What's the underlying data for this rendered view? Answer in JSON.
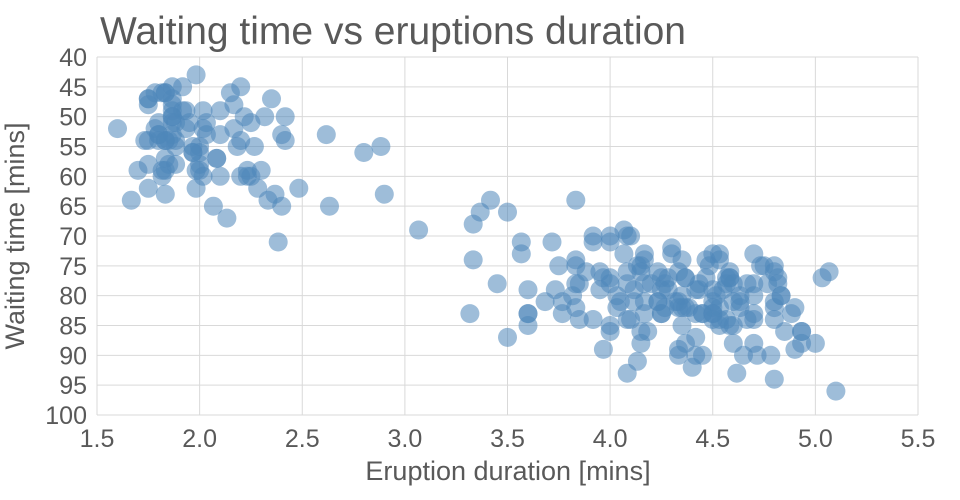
{
  "title": "Waiting time vs eruptions duration",
  "chart_data": {
    "type": "scatter",
    "title": "Waiting time vs eruptions duration",
    "xlabel": "Eruption duration [mins]",
    "ylabel": "Waiting time [mins]",
    "xlim": [
      1.5,
      5.5
    ],
    "ylim": [
      40,
      100
    ],
    "y_axis_inverted": true,
    "grid": true,
    "legend": "none",
    "x_ticks": [
      1.5,
      2.0,
      2.5,
      3.0,
      3.5,
      4.0,
      4.5,
      5.0,
      5.5
    ],
    "x_tick_labels": [
      "1.5",
      "2.0",
      "2.5",
      "3.0",
      "3.5",
      "4.0",
      "4.5",
      "5.0",
      "5.5"
    ],
    "y_ticks": [
      40,
      45,
      50,
      55,
      60,
      65,
      70,
      75,
      80,
      85,
      90,
      95,
      100
    ],
    "y_tick_labels": [
      "40",
      "45",
      "50",
      "55",
      "60",
      "65",
      "70",
      "75",
      "80",
      "85",
      "90",
      "95",
      "100"
    ],
    "colors": {
      "points": "#4f86ba",
      "grid": "#d9d9d9",
      "text": "#595959"
    },
    "point_opacity": 0.55,
    "point_radius": 9.5,
    "points": [
      [
        3.6,
        79
      ],
      [
        1.8,
        54
      ],
      [
        3.333,
        74
      ],
      [
        2.283,
        62
      ],
      [
        4.533,
        85
      ],
      [
        2.883,
        55
      ],
      [
        4.7,
        88
      ],
      [
        3.6,
        85
      ],
      [
        1.95,
        51
      ],
      [
        4.35,
        85
      ],
      [
        1.833,
        54
      ],
      [
        3.917,
        84
      ],
      [
        4.2,
        78
      ],
      [
        1.75,
        47
      ],
      [
        4.7,
        83
      ],
      [
        2.167,
        52
      ],
      [
        1.75,
        62
      ],
      [
        4.8,
        84
      ],
      [
        1.6,
        52
      ],
      [
        4.25,
        79
      ],
      [
        1.8,
        51
      ],
      [
        1.75,
        47
      ],
      [
        3.45,
        78
      ],
      [
        3.067,
        69
      ],
      [
        4.533,
        74
      ],
      [
        3.6,
        83
      ],
      [
        1.967,
        55
      ],
      [
        4.083,
        76
      ],
      [
        3.85,
        78
      ],
      [
        4.433,
        79
      ],
      [
        4.3,
        73
      ],
      [
        4.467,
        77
      ],
      [
        3.367,
        66
      ],
      [
        4.033,
        80
      ],
      [
        3.833,
        74
      ],
      [
        2.017,
        52
      ],
      [
        1.867,
        48
      ],
      [
        4.833,
        80
      ],
      [
        1.833,
        59
      ],
      [
        4.783,
        90
      ],
      [
        4.35,
        80
      ],
      [
        1.883,
        58
      ],
      [
        4.567,
        84
      ],
      [
        1.75,
        58
      ],
      [
        4.533,
        73
      ],
      [
        3.317,
        83
      ],
      [
        3.833,
        64
      ],
      [
        2.1,
        53
      ],
      [
        4.633,
        82
      ],
      [
        2.0,
        59
      ],
      [
        4.8,
        75
      ],
      [
        4.716,
        90
      ],
      [
        1.833,
        54
      ],
      [
        4.833,
        80
      ],
      [
        1.733,
        54
      ],
      [
        4.883,
        83
      ],
      [
        3.717,
        71
      ],
      [
        1.667,
        64
      ],
      [
        4.567,
        77
      ],
      [
        4.317,
        81
      ],
      [
        2.233,
        59
      ],
      [
        4.5,
        84
      ],
      [
        1.75,
        48
      ],
      [
        4.8,
        82
      ],
      [
        1.817,
        60
      ],
      [
        4.4,
        92
      ],
      [
        4.167,
        78
      ],
      [
        4.7,
        78
      ],
      [
        2.067,
        65
      ],
      [
        4.7,
        73
      ],
      [
        4.033,
        82
      ],
      [
        1.967,
        56
      ],
      [
        4.5,
        79
      ],
      [
        4.0,
        71
      ],
      [
        1.983,
        62
      ],
      [
        5.067,
        76
      ],
      [
        2.017,
        60
      ],
      [
        4.567,
        78
      ],
      [
        3.883,
        76
      ],
      [
        3.6,
        83
      ],
      [
        4.133,
        75
      ],
      [
        4.333,
        82
      ],
      [
        4.1,
        70
      ],
      [
        2.633,
        65
      ],
      [
        4.067,
        73
      ],
      [
        4.933,
        88
      ],
      [
        3.95,
        76
      ],
      [
        4.517,
        80
      ],
      [
        2.167,
        48
      ],
      [
        4.0,
        86
      ],
      [
        2.2,
        60
      ],
      [
        4.333,
        90
      ],
      [
        1.867,
        50
      ],
      [
        4.817,
        78
      ],
      [
        1.833,
        63
      ],
      [
        4.3,
        72
      ],
      [
        4.667,
        84
      ],
      [
        3.75,
        75
      ],
      [
        1.867,
        51
      ],
      [
        4.9,
        82
      ],
      [
        2.483,
        62
      ],
      [
        4.367,
        88
      ],
      [
        2.1,
        49
      ],
      [
        4.5,
        83
      ],
      [
        4.05,
        81
      ],
      [
        1.867,
        47
      ],
      [
        4.7,
        84
      ],
      [
        1.783,
        52
      ],
      [
        4.85,
        86
      ],
      [
        3.683,
        81
      ],
      [
        4.733,
        75
      ],
      [
        2.3,
        59
      ],
      [
        4.9,
        89
      ],
      [
        4.417,
        79
      ],
      [
        1.7,
        59
      ],
      [
        4.633,
        81
      ],
      [
        2.317,
        50
      ],
      [
        4.6,
        85
      ],
      [
        1.817,
        59
      ],
      [
        4.417,
        87
      ],
      [
        2.617,
        53
      ],
      [
        4.067,
        69
      ],
      [
        4.25,
        77
      ],
      [
        1.967,
        56
      ],
      [
        4.6,
        88
      ],
      [
        3.767,
        81
      ],
      [
        1.917,
        45
      ],
      [
        4.5,
        82
      ],
      [
        2.267,
        55
      ],
      [
        4.65,
        90
      ],
      [
        1.867,
        45
      ],
      [
        4.167,
        83
      ],
      [
        2.8,
        56
      ],
      [
        4.333,
        89
      ],
      [
        1.833,
        46
      ],
      [
        4.383,
        82
      ],
      [
        1.883,
        51
      ],
      [
        4.933,
        86
      ],
      [
        2.033,
        53
      ],
      [
        3.733,
        79
      ],
      [
        4.233,
        81
      ],
      [
        2.233,
        60
      ],
      [
        4.533,
        82
      ],
      [
        4.817,
        77
      ],
      [
        4.333,
        76
      ],
      [
        1.983,
        59
      ],
      [
        4.633,
        80
      ],
      [
        2.017,
        49
      ],
      [
        5.1,
        96
      ],
      [
        1.8,
        53
      ],
      [
        5.033,
        77
      ],
      [
        4.0,
        77
      ],
      [
        2.4,
        65
      ],
      [
        4.6,
        81
      ],
      [
        3.567,
        71
      ],
      [
        4.0,
        70
      ],
      [
        4.5,
        81
      ],
      [
        4.083,
        93
      ],
      [
        1.8,
        53
      ],
      [
        3.967,
        89
      ],
      [
        2.2,
        45
      ],
      [
        4.15,
        86
      ],
      [
        2.0,
        58
      ],
      [
        3.833,
        78
      ],
      [
        3.5,
        66
      ],
      [
        4.583,
        76
      ],
      [
        2.367,
        63
      ],
      [
        5.0,
        88
      ],
      [
        1.933,
        52
      ],
      [
        4.617,
        93
      ],
      [
        1.917,
        49
      ],
      [
        2.083,
        57
      ],
      [
        4.583,
        77
      ],
      [
        3.333,
        68
      ],
      [
        4.167,
        81
      ],
      [
        4.333,
        81
      ],
      [
        4.167,
        73
      ],
      [
        2.417,
        50
      ],
      [
        4.0,
        85
      ],
      [
        4.167,
        74
      ],
      [
        1.883,
        55
      ],
      [
        4.583,
        77
      ],
      [
        4.25,
        83
      ],
      [
        3.767,
        83
      ],
      [
        2.033,
        51
      ],
      [
        4.433,
        78
      ],
      [
        4.083,
        84
      ],
      [
        1.833,
        46
      ],
      [
        4.417,
        83
      ],
      [
        2.183,
        55
      ],
      [
        4.8,
        81
      ],
      [
        1.833,
        57
      ],
      [
        4.8,
        76
      ],
      [
        4.1,
        84
      ],
      [
        3.966,
        77
      ],
      [
        4.233,
        81
      ],
      [
        3.5,
        87
      ],
      [
        4.366,
        77
      ],
      [
        2.25,
        51
      ],
      [
        4.667,
        78
      ],
      [
        2.1,
        60
      ],
      [
        4.35,
        82
      ],
      [
        4.133,
        91
      ],
      [
        1.867,
        53
      ],
      [
        4.6,
        78
      ],
      [
        1.783,
        46
      ],
      [
        4.367,
        77
      ],
      [
        3.85,
        84
      ],
      [
        1.933,
        49
      ],
      [
        4.5,
        83
      ],
      [
        2.383,
        71
      ],
      [
        4.7,
        80
      ],
      [
        1.867,
        49
      ],
      [
        3.833,
        75
      ],
      [
        3.417,
        64
      ],
      [
        4.233,
        76
      ],
      [
        2.4,
        53
      ],
      [
        4.8,
        94
      ],
      [
        2.0,
        55
      ],
      [
        4.15,
        76
      ],
      [
        1.867,
        50
      ],
      [
        4.267,
        82
      ],
      [
        1.75,
        54
      ],
      [
        4.483,
        75
      ],
      [
        4.0,
        78
      ],
      [
        4.117,
        79
      ],
      [
        4.083,
        78
      ],
      [
        4.267,
        78
      ],
      [
        3.917,
        70
      ],
      [
        4.55,
        79
      ],
      [
        4.083,
        70
      ],
      [
        2.417,
        54
      ],
      [
        4.183,
        86
      ],
      [
        2.217,
        50
      ],
      [
        4.45,
        90
      ],
      [
        1.883,
        54
      ],
      [
        1.85,
        54
      ],
      [
        4.283,
        77
      ],
      [
        3.95,
        79
      ],
      [
        2.333,
        64
      ],
      [
        4.15,
        75
      ],
      [
        2.35,
        47
      ],
      [
        4.933,
        86
      ],
      [
        2.9,
        63
      ],
      [
        4.583,
        85
      ],
      [
        3.833,
        82
      ],
      [
        2.083,
        57
      ],
      [
        4.367,
        82
      ],
      [
        2.133,
        67
      ],
      [
        4.35,
        74
      ],
      [
        2.2,
        54
      ],
      [
        4.45,
        83
      ],
      [
        3.567,
        73
      ],
      [
        4.5,
        73
      ],
      [
        4.15,
        88
      ],
      [
        3.817,
        80
      ],
      [
        3.917,
        71
      ],
      [
        4.45,
        83
      ],
      [
        2.0,
        56
      ],
      [
        4.283,
        79
      ],
      [
        4.767,
        78
      ],
      [
        4.533,
        84
      ],
      [
        1.85,
        58
      ],
      [
        4.25,
        83
      ],
      [
        1.983,
        43
      ],
      [
        2.25,
        60
      ],
      [
        4.75,
        75
      ],
      [
        4.117,
        81
      ],
      [
        2.15,
        46
      ],
      [
        4.417,
        90
      ],
      [
        1.817,
        46
      ],
      [
        4.467,
        74
      ]
    ]
  }
}
